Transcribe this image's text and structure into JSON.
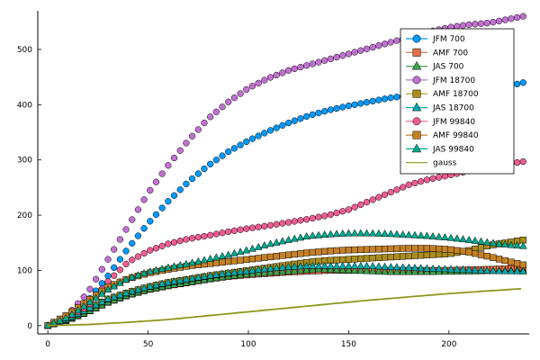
{
  "chart_data": {
    "type": "scatter",
    "title": "",
    "xlabel": "",
    "ylabel": "",
    "xlim": [
      -5,
      240
    ],
    "ylim": [
      -15,
      570
    ],
    "x_ticks": [
      0,
      50,
      100,
      150,
      200
    ],
    "y_ticks": [
      0,
      100,
      200,
      300,
      400,
      500
    ],
    "grid": false,
    "legend_position": "top-right",
    "series": [
      {
        "name": "JFM  700",
        "color": "#009af9",
        "marker": "circle",
        "kind": "points",
        "anchors": [
          [
            0,
            0
          ],
          [
            10,
            15
          ],
          [
            20,
            45
          ],
          [
            30,
            90
          ],
          [
            40,
            140
          ],
          [
            50,
            185
          ],
          [
            60,
            225
          ],
          [
            70,
            260
          ],
          [
            80,
            290
          ],
          [
            90,
            315
          ],
          [
            100,
            335
          ],
          [
            110,
            352
          ],
          [
            120,
            367
          ],
          [
            130,
            380
          ],
          [
            140,
            390
          ],
          [
            150,
            398
          ],
          [
            160,
            405
          ],
          [
            170,
            412
          ],
          [
            180,
            417
          ],
          [
            190,
            421
          ],
          [
            200,
            425
          ],
          [
            210,
            428
          ],
          [
            220,
            431
          ],
          [
            230,
            434
          ],
          [
            237,
            440
          ]
        ]
      },
      {
        "name": "AMF  700",
        "color": "#e26f46",
        "marker": "square",
        "kind": "points",
        "anchors": [
          [
            0,
            0
          ],
          [
            10,
            10
          ],
          [
            20,
            25
          ],
          [
            30,
            42
          ],
          [
            40,
            55
          ],
          [
            50,
            65
          ],
          [
            60,
            72
          ],
          [
            70,
            78
          ],
          [
            80,
            84
          ],
          [
            90,
            89
          ],
          [
            100,
            92
          ],
          [
            120,
            97
          ],
          [
            140,
            100
          ],
          [
            160,
            100
          ],
          [
            180,
            100
          ],
          [
            200,
            100
          ],
          [
            220,
            102
          ],
          [
            237,
            104
          ]
        ]
      },
      {
        "name": "JAS  700",
        "color": "#3da44d",
        "marker": "triangle",
        "kind": "points",
        "anchors": [
          [
            0,
            0
          ],
          [
            10,
            10
          ],
          [
            20,
            25
          ],
          [
            30,
            42
          ],
          [
            40,
            55
          ],
          [
            50,
            65
          ],
          [
            60,
            72
          ],
          [
            70,
            78
          ],
          [
            80,
            84
          ],
          [
            90,
            89
          ],
          [
            100,
            93
          ],
          [
            120,
            98
          ],
          [
            135,
            102
          ],
          [
            150,
            100
          ],
          [
            170,
            97
          ],
          [
            190,
            97
          ],
          [
            210,
            98
          ],
          [
            237,
            100
          ]
        ]
      },
      {
        "name": "JFM  18700",
        "color": "#c271d2",
        "marker": "circle",
        "kind": "points",
        "anchors": [
          [
            0,
            0
          ],
          [
            10,
            20
          ],
          [
            20,
            60
          ],
          [
            30,
            120
          ],
          [
            40,
            180
          ],
          [
            50,
            240
          ],
          [
            60,
            290
          ],
          [
            70,
            335
          ],
          [
            80,
            375
          ],
          [
            90,
            405
          ],
          [
            100,
            430
          ],
          [
            110,
            448
          ],
          [
            120,
            462
          ],
          [
            130,
            472
          ],
          [
            140,
            482
          ],
          [
            150,
            492
          ],
          [
            160,
            502
          ],
          [
            170,
            512
          ],
          [
            180,
            522
          ],
          [
            190,
            532
          ],
          [
            200,
            540
          ],
          [
            210,
            545
          ],
          [
            220,
            548
          ],
          [
            230,
            555
          ],
          [
            237,
            560
          ]
        ]
      },
      {
        "name": "AMF  18700",
        "color": "#ac8d18",
        "marker": "square",
        "kind": "points",
        "anchors": [
          [
            0,
            0
          ],
          [
            10,
            12
          ],
          [
            20,
            30
          ],
          [
            30,
            48
          ],
          [
            40,
            60
          ],
          [
            50,
            70
          ],
          [
            60,
            78
          ],
          [
            70,
            84
          ],
          [
            80,
            90
          ],
          [
            90,
            95
          ],
          [
            100,
            100
          ],
          [
            110,
            105
          ],
          [
            120,
            110
          ],
          [
            130,
            115
          ],
          [
            140,
            118
          ],
          [
            150,
            120
          ],
          [
            160,
            122
          ],
          [
            170,
            124
          ],
          [
            180,
            126
          ],
          [
            190,
            128
          ],
          [
            200,
            130
          ],
          [
            210,
            136
          ],
          [
            220,
            145
          ],
          [
            237,
            155
          ]
        ]
      },
      {
        "name": "JAS  18700",
        "color": "#00a9ad",
        "marker": "triangle",
        "kind": "points",
        "anchors": [
          [
            0,
            0
          ],
          [
            10,
            12
          ],
          [
            20,
            30
          ],
          [
            30,
            48
          ],
          [
            40,
            60
          ],
          [
            50,
            70
          ],
          [
            60,
            78
          ],
          [
            70,
            84
          ],
          [
            80,
            90
          ],
          [
            90,
            95
          ],
          [
            100,
            99
          ],
          [
            110,
            103
          ],
          [
            120,
            106
          ],
          [
            130,
            108
          ],
          [
            140,
            108
          ],
          [
            150,
            108
          ],
          [
            160,
            108
          ],
          [
            170,
            106
          ],
          [
            180,
            105
          ],
          [
            190,
            103
          ],
          [
            200,
            102
          ],
          [
            210,
            101
          ],
          [
            220,
            99
          ],
          [
            237,
            98
          ]
        ]
      },
      {
        "name": "JFM  99840",
        "color": "#ed5d92",
        "marker": "circle",
        "kind": "points",
        "anchors": [
          [
            0,
            0
          ],
          [
            10,
            15
          ],
          [
            20,
            35
          ],
          [
            30,
            80
          ],
          [
            40,
            115
          ],
          [
            50,
            135
          ],
          [
            60,
            148
          ],
          [
            70,
            157
          ],
          [
            80,
            163
          ],
          [
            90,
            170
          ],
          [
            100,
            176
          ],
          [
            110,
            181
          ],
          [
            120,
            187
          ],
          [
            130,
            193
          ],
          [
            140,
            200
          ],
          [
            150,
            210
          ],
          [
            160,
            225
          ],
          [
            170,
            240
          ],
          [
            180,
            255
          ],
          [
            190,
            265
          ],
          [
            200,
            272
          ],
          [
            210,
            280
          ],
          [
            220,
            287
          ],
          [
            230,
            293
          ],
          [
            237,
            297
          ]
        ]
      },
      {
        "name": "AMF  99840",
        "color": "#c68125",
        "marker": "square",
        "kind": "points",
        "anchors": [
          [
            0,
            0
          ],
          [
            10,
            20
          ],
          [
            20,
            45
          ],
          [
            30,
            70
          ],
          [
            40,
            85
          ],
          [
            50,
            95
          ],
          [
            60,
            102
          ],
          [
            70,
            108
          ],
          [
            80,
            112
          ],
          [
            90,
            116
          ],
          [
            100,
            120
          ],
          [
            110,
            124
          ],
          [
            120,
            128
          ],
          [
            130,
            132
          ],
          [
            140,
            135
          ],
          [
            150,
            137
          ],
          [
            160,
            138
          ],
          [
            170,
            139
          ],
          [
            180,
            140
          ],
          [
            190,
            140
          ],
          [
            200,
            138
          ],
          [
            210,
            133
          ],
          [
            220,
            125
          ],
          [
            230,
            116
          ],
          [
            237,
            110
          ]
        ]
      },
      {
        "name": "JAS  99840",
        "color": "#00a98d",
        "marker": "triangle",
        "kind": "points",
        "anchors": [
          [
            0,
            0
          ],
          [
            10,
            15
          ],
          [
            20,
            40
          ],
          [
            30,
            65
          ],
          [
            40,
            85
          ],
          [
            50,
            97
          ],
          [
            60,
            105
          ],
          [
            70,
            112
          ],
          [
            80,
            120
          ],
          [
            90,
            128
          ],
          [
            100,
            137
          ],
          [
            110,
            147
          ],
          [
            120,
            155
          ],
          [
            130,
            162
          ],
          [
            140,
            165
          ],
          [
            150,
            167
          ],
          [
            160,
            167
          ],
          [
            170,
            166
          ],
          [
            180,
            164
          ],
          [
            190,
            162
          ],
          [
            200,
            159
          ],
          [
            210,
            155
          ],
          [
            220,
            150
          ],
          [
            230,
            146
          ],
          [
            237,
            144
          ]
        ]
      },
      {
        "name": "gauss",
        "color": "#8e971d",
        "marker": "none",
        "kind": "line",
        "anchors": [
          [
            0,
            0
          ],
          [
            20,
            2
          ],
          [
            40,
            6
          ],
          [
            60,
            11
          ],
          [
            80,
            18
          ],
          [
            100,
            25
          ],
          [
            120,
            32
          ],
          [
            140,
            39
          ],
          [
            160,
            46
          ],
          [
            180,
            52
          ],
          [
            200,
            58
          ],
          [
            220,
            63
          ],
          [
            237,
            67
          ]
        ]
      }
    ]
  }
}
